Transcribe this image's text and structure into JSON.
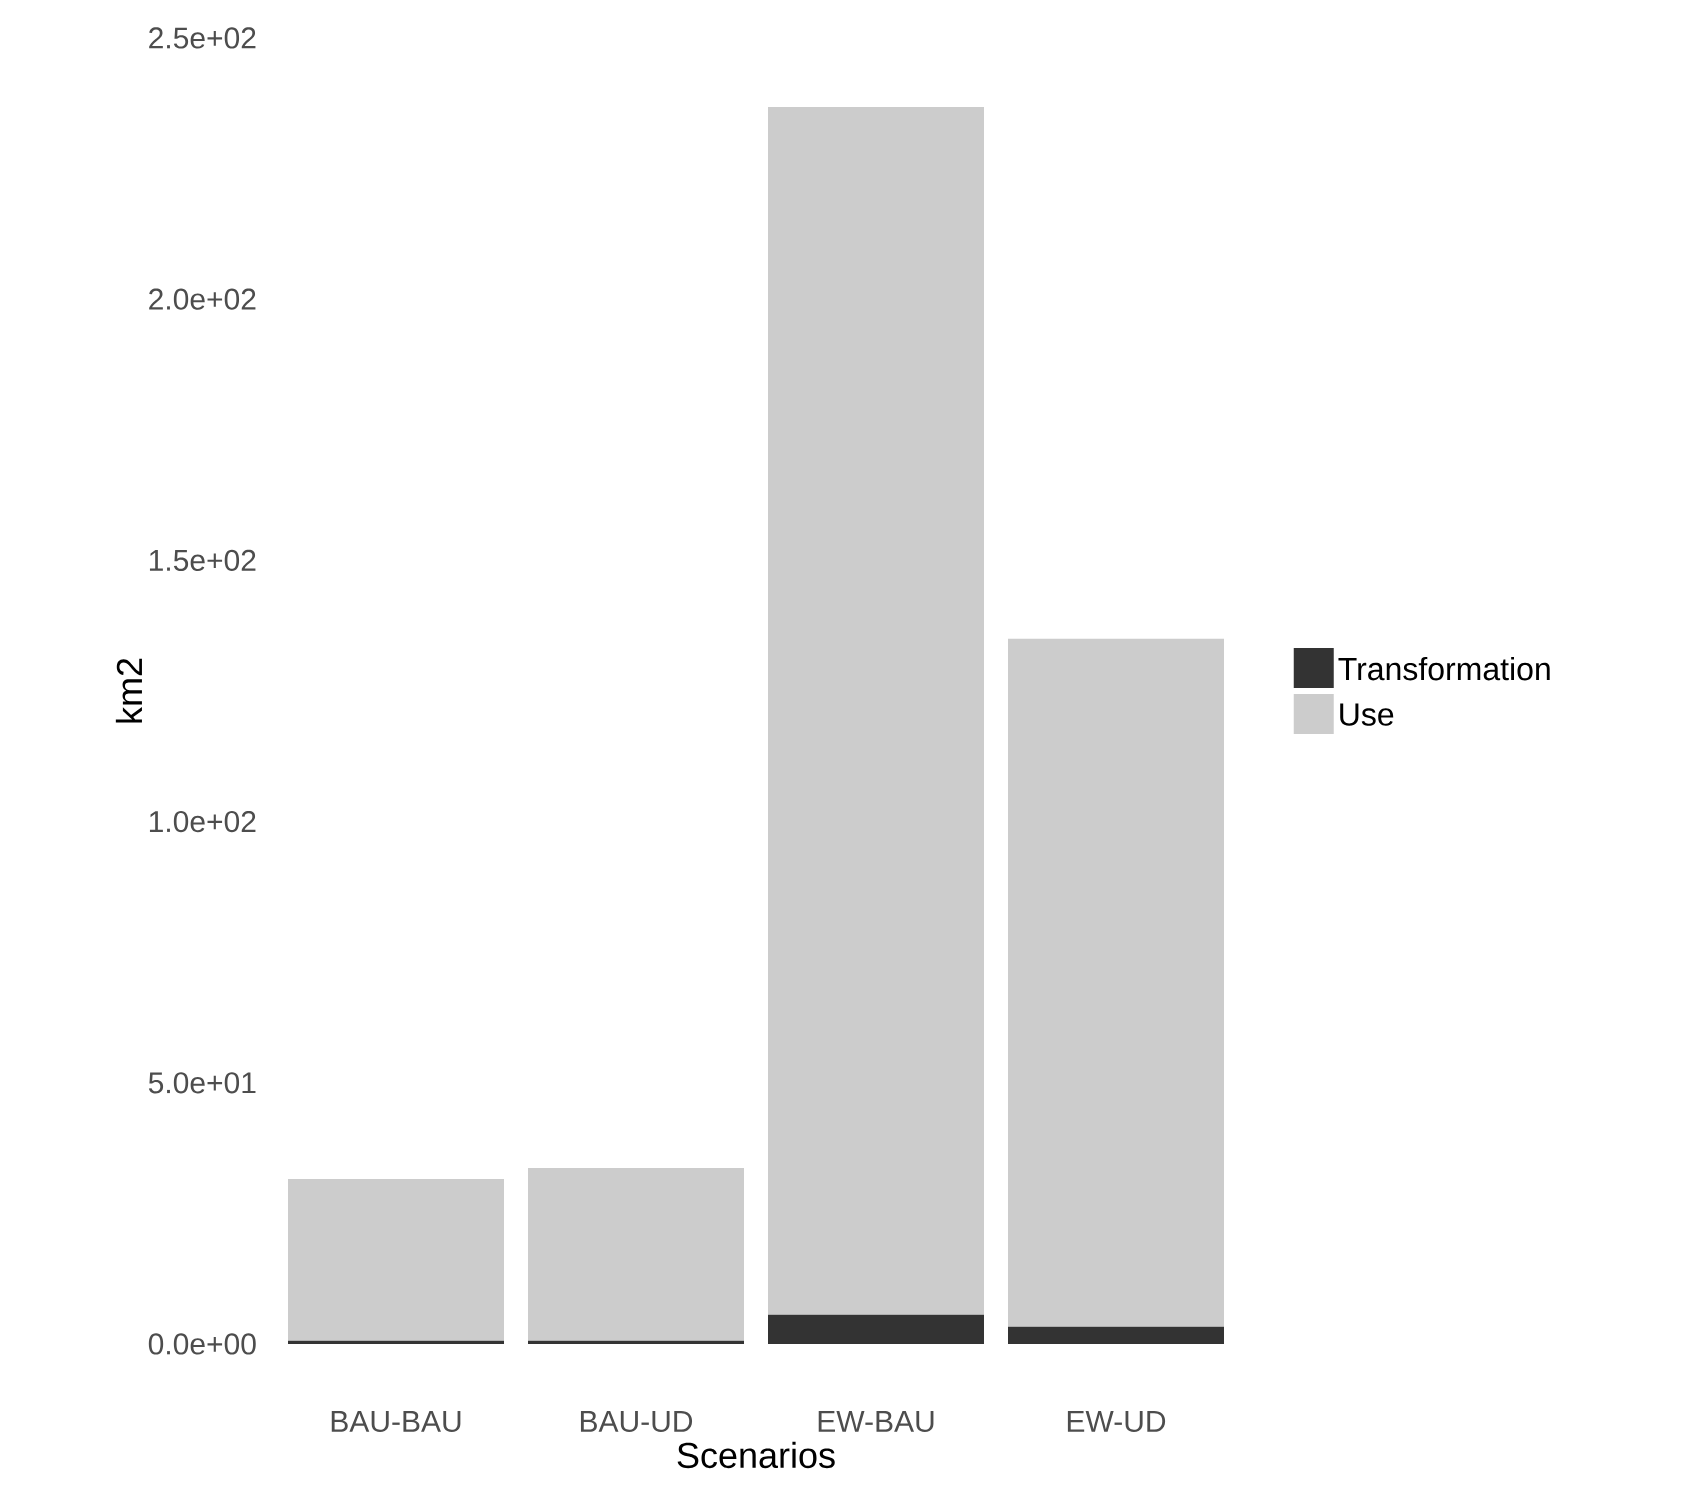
{
  "chart_data": {
    "type": "bar",
    "stacked": true,
    "xlabel": "Scenarios",
    "ylabel": "km2",
    "categories": [
      "BAU-BAU",
      "BAU-UD",
      "EW-BAU",
      "EW-UD"
    ],
    "series": [
      {
        "name": "Transformation",
        "color": "#333333",
        "values": [
          0.6,
          0.6,
          5.6,
          3.3
        ]
      },
      {
        "name": "Use",
        "color": "#cccccc",
        "values": [
          31.0,
          33.1,
          231.2,
          131.7
        ]
      }
    ],
    "ylim": [
      0,
      250
    ],
    "yticks": [
      {
        "value": 0,
        "label": "0.0e+00"
      },
      {
        "value": 50,
        "label": "5.0e+01"
      },
      {
        "value": 100,
        "label": "1.0e+02"
      },
      {
        "value": 150,
        "label": "1.5e+02"
      },
      {
        "value": 200,
        "label": "2.0e+02"
      },
      {
        "value": 250,
        "label": "2.5e+02"
      }
    ],
    "legend": "right"
  }
}
